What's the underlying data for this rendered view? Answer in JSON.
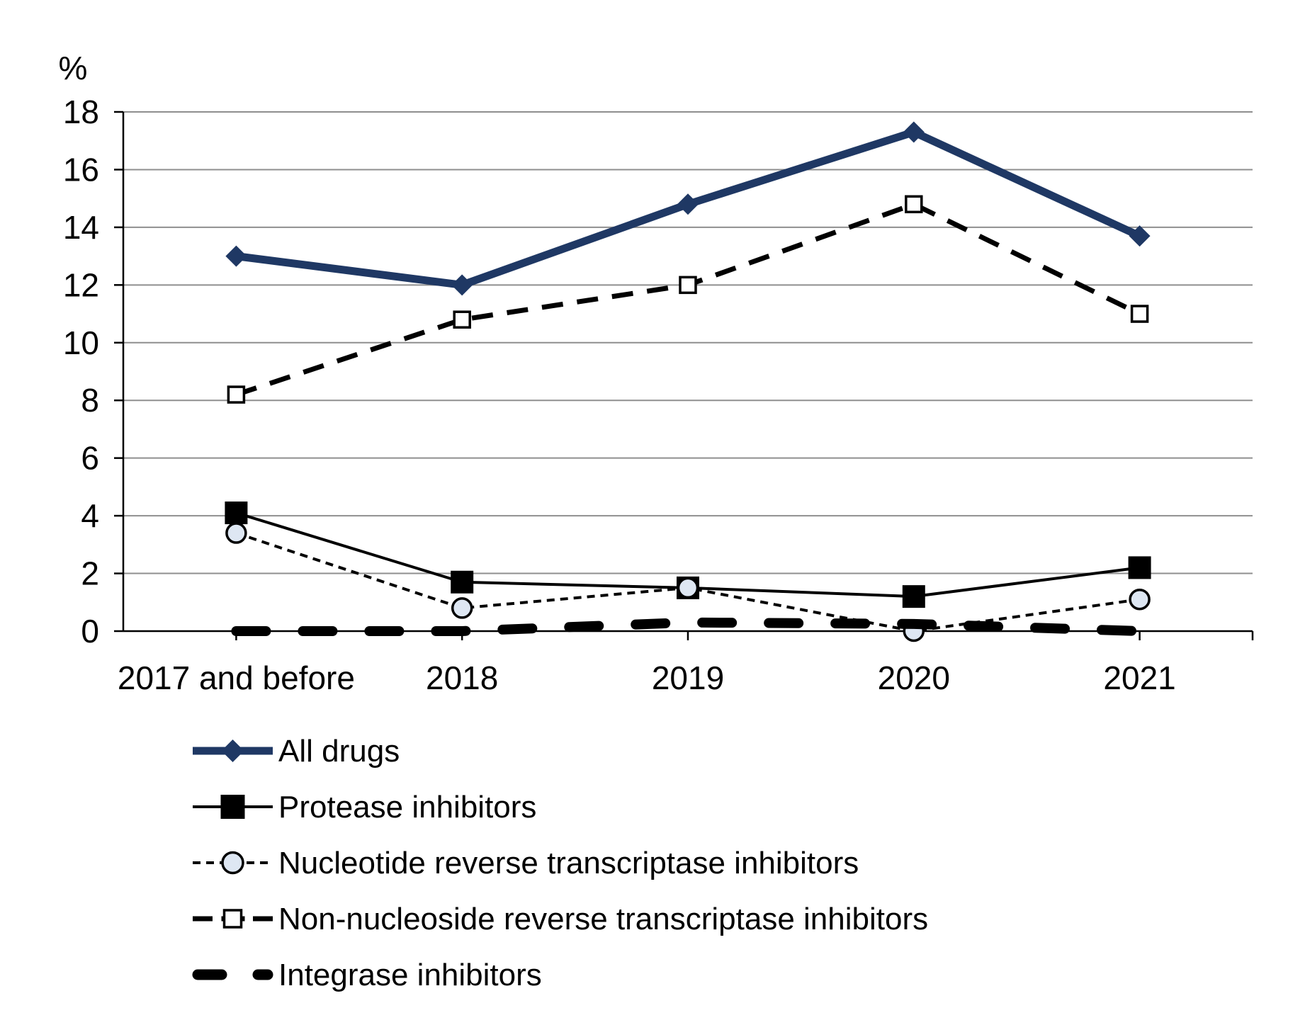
{
  "chart_data": {
    "type": "line",
    "title": "",
    "unit_label": "%",
    "categories": [
      "2017 and before",
      "2018",
      "2019",
      "2020",
      "2021"
    ],
    "ylim": [
      0,
      18
    ],
    "ytick_step": 2,
    "yticks": [
      0,
      2,
      4,
      6,
      8,
      10,
      12,
      14,
      16,
      18
    ],
    "grid": true,
    "legend_position": "bottom-left",
    "axis_color": "#000000",
    "grid_color": "#8F8F8F",
    "series": [
      {
        "name": "All drugs",
        "values": [
          13,
          12,
          14.8,
          17.3,
          13.7
        ],
        "color": "#1F3864",
        "line_width": 11,
        "dash": "",
        "cap": "butt",
        "marker": "diamond",
        "marker_fill": "#1F3864",
        "marker_size": 30
      },
      {
        "name": "Protease inhibitors",
        "values": [
          4.1,
          1.7,
          1.5,
          1.2,
          2.2
        ],
        "color": "#000000",
        "line_width": 4,
        "dash": "",
        "cap": "butt",
        "marker": "square",
        "marker_fill": "#000000",
        "marker_size": 32
      },
      {
        "name": "Nucleotide reverse transcriptase inhibitors",
        "values": [
          3.4,
          0.8,
          1.5,
          0,
          1.1
        ],
        "color": "#000000",
        "line_width": 4,
        "dash": "11 8",
        "cap": "butt",
        "marker": "circle",
        "marker_fill": "#DEE7F3",
        "marker_size": 27
      },
      {
        "name": "Non-nucleoside reverse transcriptase inhibitors",
        "values": [
          8.2,
          10.8,
          12,
          14.8,
          11
        ],
        "color": "#000000",
        "line_width": 7,
        "dash": "30 20",
        "cap": "butt",
        "marker": "square-open",
        "marker_fill": "#FFFFFF",
        "marker_size": 22
      },
      {
        "name": "Integrase inhibitors",
        "values": [
          0,
          0,
          0.3,
          0.25,
          0
        ],
        "color": "#000000",
        "line_width": 14,
        "dash": "42 52",
        "cap": "round",
        "marker": "none",
        "marker_fill": "",
        "marker_size": 0
      }
    ]
  }
}
